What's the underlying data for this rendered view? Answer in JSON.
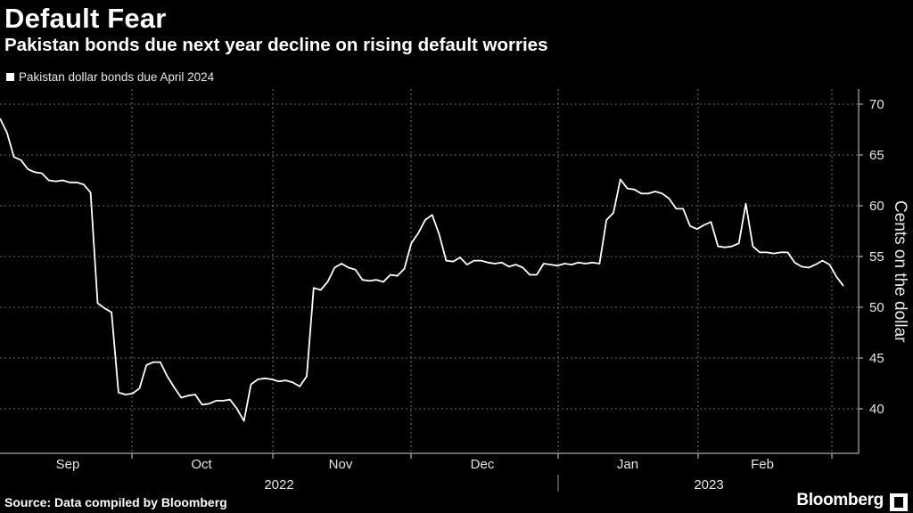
{
  "header": {
    "title": "Default Fear",
    "subtitle": "Pakistan bonds due next year decline on rising default worries"
  },
  "footer": {
    "source": "Source: Data compiled by Bloomberg",
    "brand": "Bloomberg"
  },
  "colors": {
    "background": "#000000",
    "line": "#ffffff",
    "grid": "#8a8a8a"
  },
  "chart_data": {
    "type": "line",
    "title": "Default Fear",
    "subtitle": "Pakistan bonds due next year decline on rising default worries",
    "ylabel": "Cents on the dollar",
    "xlabel": "",
    "ylim": [
      37,
      71
    ],
    "yticks": [
      40,
      45,
      50,
      55,
      60,
      65,
      70
    ],
    "y_axis_side": "right",
    "grid": true,
    "legend_position": "top-left",
    "x_month_labels": [
      "Sep",
      "Oct",
      "Nov",
      "Dec",
      "Jan",
      "Feb"
    ],
    "x_year_labels": [
      "2022",
      "2023"
    ],
    "series": [
      {
        "name": "Pakistan dollar bonds due April 2024",
        "color": "#ffffff",
        "values": [
          68.6,
          67.2,
          64.8,
          64.5,
          63.6,
          63.3,
          63.2,
          62.5,
          62.4,
          62.5,
          62.3,
          62.3,
          62.1,
          61.3,
          50.4,
          49.9,
          49.5,
          41.6,
          41.4,
          41.5,
          42.0,
          44.3,
          44.6,
          44.6,
          43.2,
          42.1,
          41.1,
          41.3,
          41.4,
          40.4,
          40.5,
          40.8,
          40.8,
          40.9,
          40.0,
          38.8,
          42.4,
          42.9,
          43.0,
          42.9,
          42.7,
          42.8,
          42.6,
          42.2,
          43.2,
          51.9,
          51.7,
          52.5,
          53.9,
          54.3,
          53.9,
          53.7,
          52.7,
          52.6,
          52.7,
          52.5,
          53.2,
          53.1,
          53.8,
          56.3,
          57.3,
          58.6,
          59.1,
          57.2,
          54.6,
          54.5,
          54.9,
          54.2,
          54.6,
          54.6,
          54.4,
          54.3,
          54.4,
          54.0,
          54.2,
          53.9,
          53.2,
          53.2,
          54.3,
          54.2,
          54.1,
          54.3,
          54.2,
          54.4,
          54.3,
          54.4,
          54.3,
          58.6,
          59.3,
          62.6,
          61.7,
          61.6,
          61.2,
          61.2,
          61.4,
          61.2,
          60.7,
          59.7,
          59.7,
          58.0,
          57.7,
          58.1,
          58.4,
          56.0,
          55.9,
          56.0,
          56.3,
          60.2,
          56.0,
          55.4,
          55.4,
          55.3,
          55.4,
          55.4,
          54.4,
          54.0,
          53.9,
          54.2,
          54.6,
          54.2,
          53.0,
          52.1
        ]
      }
    ]
  }
}
